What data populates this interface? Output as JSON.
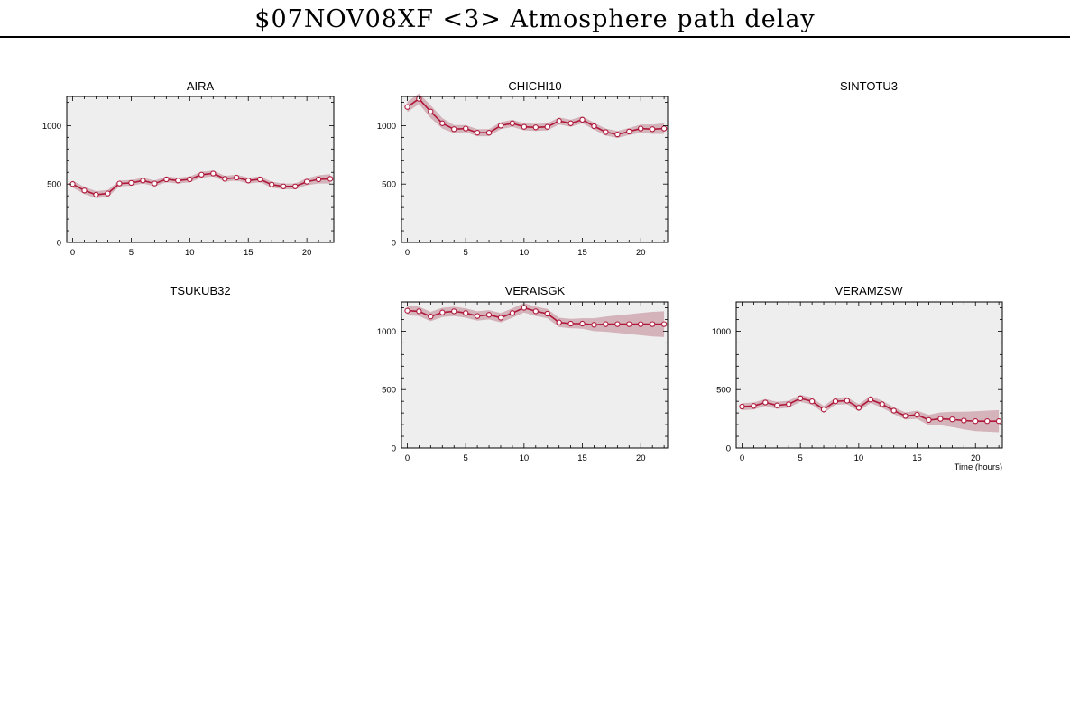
{
  "title": "$07NOV08XF <3>  Atmosphere path delay",
  "colors": {
    "line": "#b0183a",
    "band": "#d4b3bb",
    "plot_bg": "#eeeeee",
    "axis": "#000000"
  },
  "stations": {
    "aira": "AIRA",
    "chichi10": "CHICHI10",
    "sintotu3": "SINTOTU3",
    "tsukub32": "TSUKUB32",
    "veraisgk": "VERAISGK",
    "veramzsw": "VERAMZSW"
  },
  "x_axis_label": "Time (hours)",
  "chart_data": [
    {
      "type": "line",
      "title": "AIRA",
      "xlim": [
        -0.5,
        22.3
      ],
      "ylim": [
        0,
        1250
      ],
      "xticks": [
        0,
        5,
        10,
        15,
        20
      ],
      "yticks": [
        0,
        500,
        1000
      ],
      "x": [
        0,
        1,
        2,
        3,
        4,
        5,
        6,
        7,
        8,
        9,
        10,
        11,
        12,
        13,
        14,
        15,
        16,
        17,
        18,
        19,
        20,
        21,
        22
      ],
      "y": [
        500,
        445,
        410,
        420,
        505,
        510,
        530,
        505,
        540,
        530,
        540,
        580,
        590,
        545,
        555,
        530,
        540,
        495,
        480,
        480,
        520,
        540,
        545
      ],
      "band": [
        30,
        30,
        30,
        30,
        25,
        25,
        25,
        25,
        25,
        25,
        25,
        25,
        25,
        25,
        25,
        25,
        25,
        25,
        25,
        25,
        30,
        35,
        40
      ]
    },
    {
      "type": "line",
      "title": "CHICHI10",
      "xlim": [
        -0.5,
        22.3
      ],
      "ylim": [
        0,
        1250
      ],
      "xticks": [
        0,
        5,
        10,
        15,
        20
      ],
      "yticks": [
        0,
        500,
        1000
      ],
      "x": [
        0,
        1,
        2,
        3,
        4,
        5,
        6,
        7,
        8,
        9,
        10,
        11,
        12,
        13,
        14,
        15,
        16,
        17,
        18,
        19,
        20,
        21,
        22
      ],
      "y": [
        1160,
        1230,
        1120,
        1020,
        970,
        975,
        940,
        940,
        1000,
        1020,
        990,
        985,
        990,
        1040,
        1020,
        1050,
        995,
        945,
        925,
        950,
        975,
        970,
        975
      ],
      "band": [
        45,
        45,
        55,
        45,
        35,
        30,
        30,
        30,
        30,
        30,
        30,
        30,
        30,
        30,
        30,
        30,
        30,
        30,
        30,
        30,
        35,
        40,
        45
      ]
    },
    {
      "type": "line",
      "title": "SINTOTU3",
      "x": [],
      "y": []
    },
    {
      "type": "line",
      "title": "TSUKUB32",
      "x": [],
      "y": []
    },
    {
      "type": "line",
      "title": "VERAISGK",
      "xlim": [
        -0.5,
        22.3
      ],
      "ylim": [
        0,
        1250
      ],
      "xticks": [
        0,
        5,
        10,
        15,
        20
      ],
      "yticks": [
        0,
        500,
        1000
      ],
      "x": [
        0,
        1,
        2,
        3,
        4,
        5,
        6,
        7,
        8,
        9,
        10,
        11,
        12,
        13,
        14,
        15,
        16,
        17,
        18,
        19,
        20,
        21,
        22
      ],
      "y": [
        1175,
        1170,
        1125,
        1160,
        1170,
        1155,
        1130,
        1140,
        1115,
        1155,
        1200,
        1170,
        1150,
        1075,
        1065,
        1065,
        1055,
        1060,
        1060,
        1060,
        1060,
        1060,
        1060
      ],
      "band": [
        40,
        40,
        40,
        40,
        40,
        40,
        40,
        40,
        40,
        40,
        40,
        40,
        40,
        40,
        40,
        45,
        55,
        65,
        75,
        85,
        95,
        105,
        110
      ]
    },
    {
      "type": "line",
      "title": "VERAMZSW",
      "xlabel": "Time (hours)",
      "xlim": [
        -0.5,
        22.3
      ],
      "ylim": [
        0,
        1250
      ],
      "xticks": [
        0,
        5,
        10,
        15,
        20
      ],
      "yticks": [
        0,
        500,
        1000
      ],
      "x": [
        0,
        1,
        2,
        3,
        4,
        5,
        6,
        7,
        8,
        9,
        10,
        11,
        12,
        13,
        14,
        15,
        16,
        17,
        18,
        19,
        20,
        21,
        22
      ],
      "y": [
        355,
        360,
        390,
        365,
        375,
        425,
        400,
        330,
        400,
        405,
        345,
        415,
        375,
        320,
        275,
        285,
        240,
        250,
        245,
        235,
        230,
        230,
        230
      ],
      "band": [
        30,
        30,
        30,
        30,
        30,
        30,
        30,
        30,
        30,
        30,
        30,
        30,
        30,
        30,
        30,
        35,
        45,
        55,
        65,
        75,
        85,
        90,
        95
      ]
    }
  ]
}
